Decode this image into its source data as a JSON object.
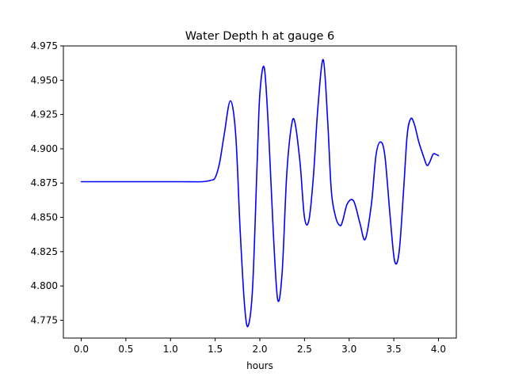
{
  "chart_data": {
    "type": "line",
    "title": "Water Depth h at gauge 6",
    "xlabel": "hours",
    "ylabel": "",
    "xlim": [
      -0.2,
      4.2
    ],
    "ylim": [
      4.762,
      4.975
    ],
    "grid": false,
    "x_ticks": [
      0.0,
      0.5,
      1.0,
      1.5,
      2.0,
      2.5,
      3.0,
      3.5,
      4.0
    ],
    "x_tick_labels": [
      "0.0",
      "0.5",
      "1.0",
      "1.5",
      "2.0",
      "2.5",
      "3.0",
      "3.5",
      "4.0"
    ],
    "y_ticks": [
      4.775,
      4.8,
      4.825,
      4.85,
      4.875,
      4.9,
      4.925,
      4.95,
      4.975
    ],
    "y_tick_labels": [
      "4.775",
      "4.800",
      "4.825",
      "4.850",
      "4.875",
      "4.900",
      "4.925",
      "4.950",
      "4.975"
    ],
    "series": [
      {
        "color": "#0000ff",
        "x": [
          0.0,
          0.5,
          1.0,
          1.15,
          1.35,
          1.45,
          1.5,
          1.55,
          1.6,
          1.67,
          1.73,
          1.78,
          1.83,
          1.87,
          1.92,
          1.97,
          2.0,
          2.05,
          2.1,
          2.15,
          2.2,
          2.25,
          2.3,
          2.35,
          2.39,
          2.45,
          2.5,
          2.55,
          2.6,
          2.65,
          2.71,
          2.76,
          2.8,
          2.85,
          2.9,
          2.93,
          2.98,
          3.05,
          3.12,
          3.18,
          3.25,
          3.3,
          3.35,
          3.4,
          3.46,
          3.51,
          3.56,
          3.61,
          3.65,
          3.69,
          3.73,
          3.78,
          3.83,
          3.87,
          3.9,
          3.94,
          3.97,
          4.0
        ],
        "y": [
          4.876,
          4.876,
          4.876,
          4.876,
          4.876,
          4.877,
          4.879,
          4.89,
          4.91,
          4.935,
          4.91,
          4.84,
          4.785,
          4.771,
          4.8,
          4.89,
          4.94,
          4.959,
          4.91,
          4.84,
          4.79,
          4.81,
          4.88,
          4.915,
          4.92,
          4.89,
          4.85,
          4.848,
          4.88,
          4.93,
          4.965,
          4.92,
          4.87,
          4.85,
          4.844,
          4.848,
          4.86,
          4.862,
          4.846,
          4.834,
          4.86,
          4.895,
          4.905,
          4.895,
          4.85,
          4.818,
          4.825,
          4.87,
          4.91,
          4.922,
          4.918,
          4.905,
          4.895,
          4.888,
          4.89,
          4.896,
          4.896,
          4.895
        ]
      }
    ]
  }
}
